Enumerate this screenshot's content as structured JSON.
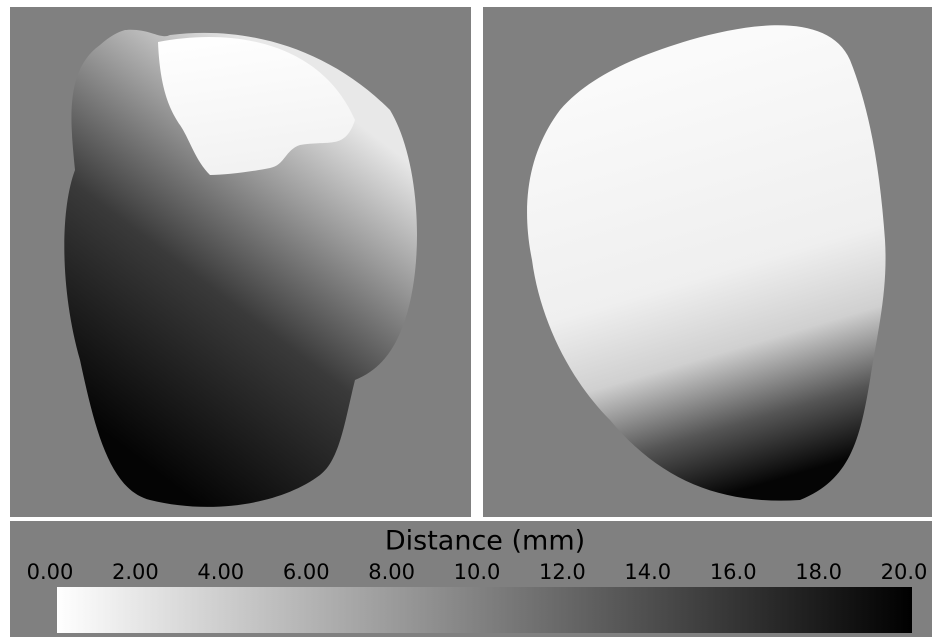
{
  "colorbar": {
    "title": "Distance (mm)",
    "tick_labels": [
      "0.00",
      "2.00",
      "4.00",
      "6.00",
      "8.00",
      "10.0",
      "12.0",
      "14.0",
      "16.0",
      "18.0",
      "20.0"
    ]
  }
}
